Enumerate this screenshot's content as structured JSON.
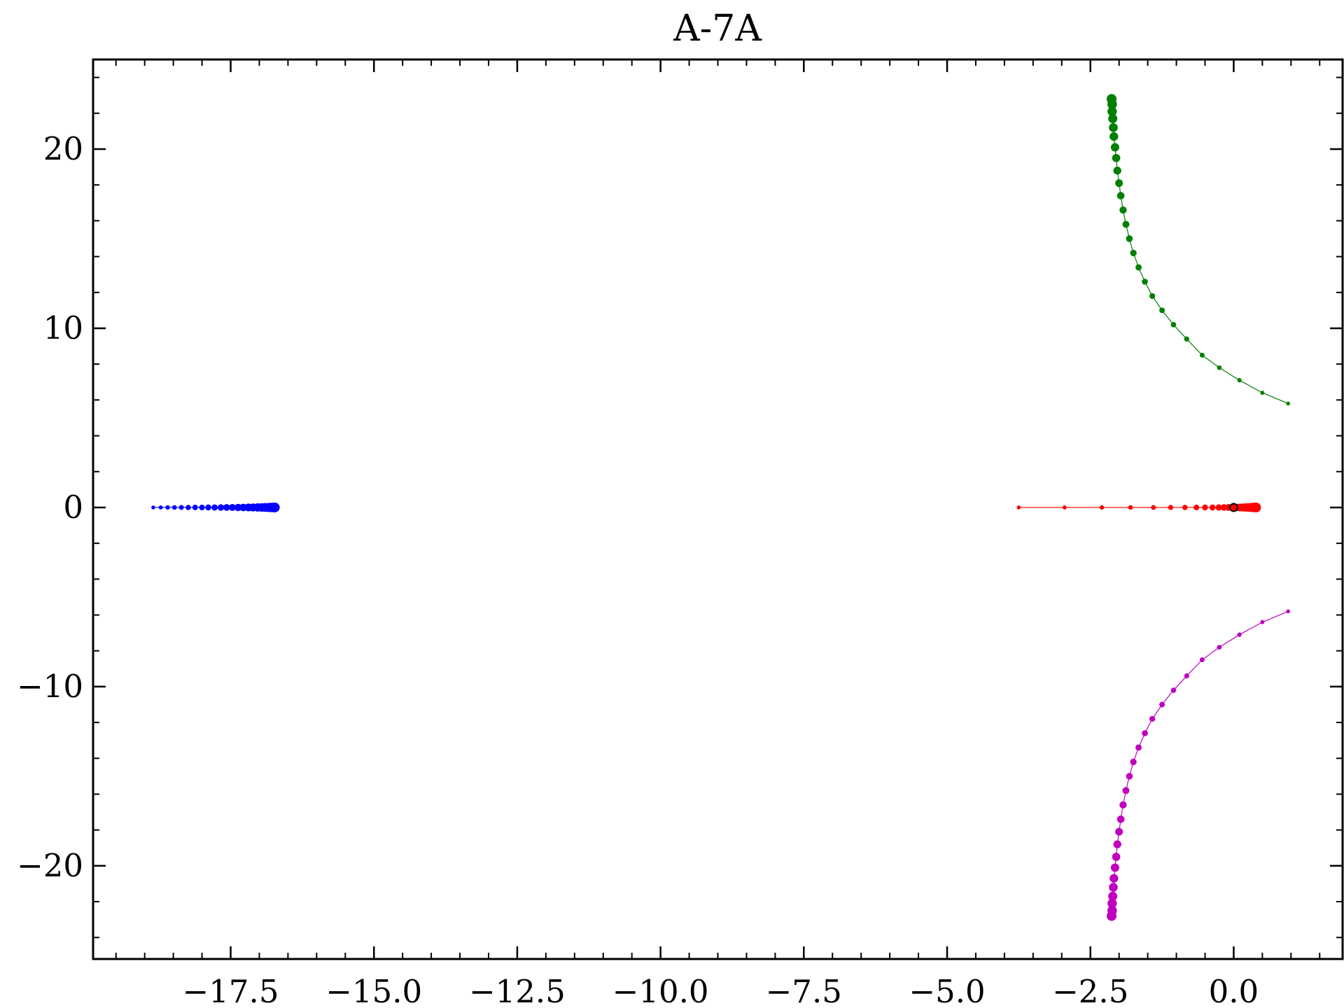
{
  "chart_data": {
    "type": "scatter",
    "title": "A-7A",
    "xlabel": "",
    "ylabel": "",
    "xlim": [
      -19.9,
      1.9
    ],
    "ylim": [
      -25.2,
      25.0
    ],
    "x_ticks": [
      -17.5,
      -15.0,
      -12.5,
      -10.0,
      -7.5,
      -5.0,
      -2.5,
      0.0
    ],
    "x_tick_labels": [
      "−17.5",
      "−15.0",
      "−12.5",
      "−10.0",
      "−7.5",
      "−5.0",
      "−2.5",
      "0.0"
    ],
    "y_ticks": [
      -20,
      -10,
      0,
      10,
      20
    ],
    "y_tick_labels": [
      "−20",
      "−10",
      "0",
      "10",
      "20"
    ],
    "x_minor_step": 0.5,
    "y_minor_step": 2,
    "grid": false,
    "series": [
      {
        "color": "#0000ff",
        "points": [
          [
            -18.85,
            0.0
          ],
          [
            -18.72,
            0.0
          ],
          [
            -18.6,
            0.0
          ],
          [
            -18.48,
            0.0
          ],
          [
            -18.36,
            0.0
          ],
          [
            -18.24,
            0.0
          ],
          [
            -18.12,
            0.0
          ],
          [
            -18.0,
            0.0
          ],
          [
            -17.89,
            0.0
          ],
          [
            -17.78,
            0.0
          ],
          [
            -17.67,
            0.0
          ],
          [
            -17.57,
            0.0
          ],
          [
            -17.47,
            0.0
          ],
          [
            -17.37,
            0.0
          ],
          [
            -17.28,
            0.0
          ],
          [
            -17.19,
            0.0
          ],
          [
            -17.11,
            0.0
          ],
          [
            -17.03,
            0.0
          ],
          [
            -16.96,
            0.0
          ],
          [
            -16.9,
            0.0
          ],
          [
            -16.84,
            0.0
          ],
          [
            -16.8,
            0.0
          ],
          [
            -16.76,
            0.0
          ],
          [
            -16.73,
            0.0
          ]
        ]
      },
      {
        "color": "#ff0000",
        "points": [
          [
            -3.75,
            0.0
          ],
          [
            -2.95,
            0.0
          ],
          [
            -2.3,
            0.0
          ],
          [
            -1.8,
            0.0
          ],
          [
            -1.4,
            0.0
          ],
          [
            -1.1,
            0.0
          ],
          [
            -0.85,
            0.0
          ],
          [
            -0.65,
            0.0
          ],
          [
            -0.5,
            0.0
          ],
          [
            -0.37,
            0.0
          ],
          [
            -0.26,
            0.0
          ],
          [
            -0.17,
            0.0
          ],
          [
            -0.09,
            0.0
          ],
          [
            -0.02,
            0.0
          ],
          [
            0.04,
            0.0
          ],
          [
            0.09,
            0.0
          ],
          [
            0.14,
            0.0
          ],
          [
            0.18,
            0.0
          ],
          [
            0.22,
            0.0
          ],
          [
            0.26,
            0.0
          ],
          [
            0.29,
            0.0
          ],
          [
            0.32,
            0.0
          ],
          [
            0.35,
            0.0
          ],
          [
            0.37,
            0.0
          ],
          [
            0.39,
            0.0
          ]
        ]
      },
      {
        "color": "#008000",
        "points": [
          [
            0.95,
            5.8
          ],
          [
            0.5,
            6.4
          ],
          [
            0.1,
            7.1
          ],
          [
            -0.25,
            7.8
          ],
          [
            -0.55,
            8.5
          ],
          [
            -0.82,
            9.4
          ],
          [
            -1.05,
            10.2
          ],
          [
            -1.25,
            11.0
          ],
          [
            -1.42,
            11.8
          ],
          [
            -1.55,
            12.6
          ],
          [
            -1.66,
            13.4
          ],
          [
            -1.75,
            14.2
          ],
          [
            -1.82,
            15.0
          ],
          [
            -1.88,
            15.8
          ],
          [
            -1.93,
            16.6
          ],
          [
            -1.97,
            17.4
          ],
          [
            -2.0,
            18.1
          ],
          [
            -2.03,
            18.8
          ],
          [
            -2.05,
            19.5
          ],
          [
            -2.07,
            20.1
          ],
          [
            -2.09,
            20.7
          ],
          [
            -2.1,
            21.2
          ],
          [
            -2.11,
            21.7
          ],
          [
            -2.12,
            22.1
          ],
          [
            -2.12,
            22.5
          ],
          [
            -2.13,
            22.8
          ]
        ]
      },
      {
        "color": "#bf00bf",
        "points": [
          [
            0.95,
            -5.8
          ],
          [
            0.5,
            -6.4
          ],
          [
            0.1,
            -7.1
          ],
          [
            -0.25,
            -7.8
          ],
          [
            -0.55,
            -8.5
          ],
          [
            -0.82,
            -9.4
          ],
          [
            -1.05,
            -10.2
          ],
          [
            -1.25,
            -11.0
          ],
          [
            -1.42,
            -11.8
          ],
          [
            -1.55,
            -12.6
          ],
          [
            -1.66,
            -13.4
          ],
          [
            -1.75,
            -14.2
          ],
          [
            -1.82,
            -15.0
          ],
          [
            -1.88,
            -15.8
          ],
          [
            -1.93,
            -16.6
          ],
          [
            -1.97,
            -17.4
          ],
          [
            -2.0,
            -18.1
          ],
          [
            -2.03,
            -18.8
          ],
          [
            -2.05,
            -19.5
          ],
          [
            -2.07,
            -20.1
          ],
          [
            -2.09,
            -20.7
          ],
          [
            -2.1,
            -21.2
          ],
          [
            -2.11,
            -21.7
          ],
          [
            -2.12,
            -22.1
          ],
          [
            -2.12,
            -22.5
          ],
          [
            -2.13,
            -22.8
          ]
        ]
      }
    ],
    "markers": [
      {
        "shape": "circle-open",
        "color": "#000000",
        "x": 0.0,
        "y": 0.0
      }
    ]
  }
}
